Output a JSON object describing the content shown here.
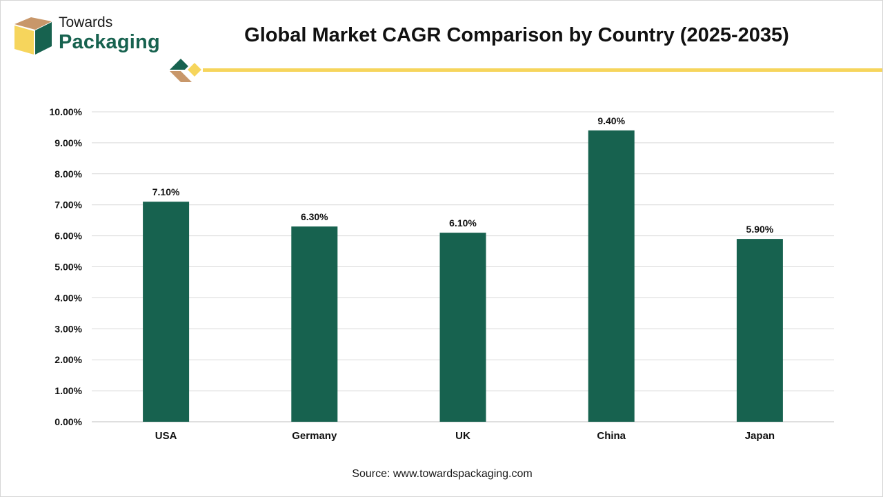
{
  "brand": {
    "line1": "Towards",
    "line2": "Packaging",
    "logo_icon": "box-icon",
    "colors": {
      "green": "#17624f",
      "tan": "#c8976a",
      "yellow": "#f6d55c"
    }
  },
  "source_text": "Source: www.towardspackaging.com",
  "chart_data": {
    "type": "bar",
    "title": "Global Market CAGR Comparison by Country (2025-2035)",
    "categories": [
      "USA",
      "Germany",
      "UK",
      "China",
      "Japan"
    ],
    "values": [
      7.1,
      6.3,
      6.1,
      9.4,
      5.9
    ],
    "value_labels": [
      "7.10%",
      "6.30%",
      "6.10%",
      "9.40%",
      "5.90%"
    ],
    "y_ticks": [
      "0.00%",
      "1.00%",
      "2.00%",
      "3.00%",
      "4.00%",
      "5.00%",
      "6.00%",
      "7.00%",
      "8.00%",
      "9.00%",
      "10.00%"
    ],
    "ylim": [
      0,
      10
    ],
    "xlabel": "",
    "ylabel": "",
    "grid": true,
    "bar_color": "#17624f"
  }
}
